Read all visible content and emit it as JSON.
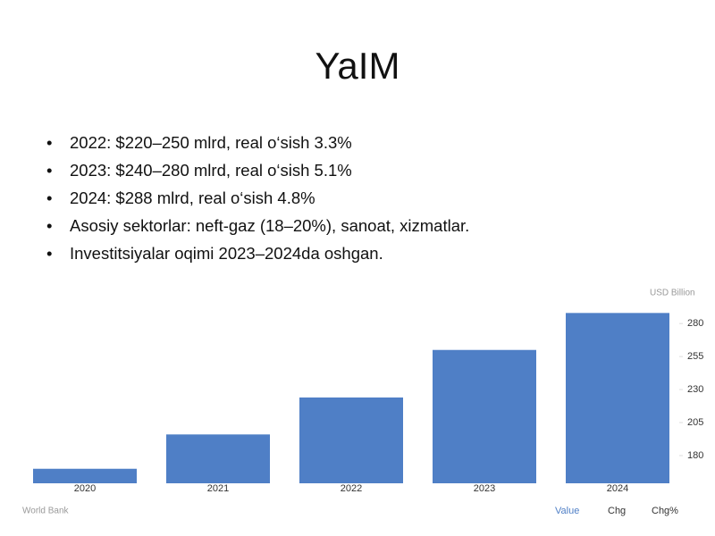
{
  "title": "YaIM",
  "bullets": [
    "2022: $220–250 mlrd, real o‘sish 3.3%",
    "2023: $240–280 mlrd, real o‘sish 5.1%",
    "2024: $288 mlrd, real o‘sish 4.8%",
    "Asosiy sektorlar: neft-gaz (18–20%), sanoat, xizmatlar.",
    "Investitsiyalar oqimi 2023–2024da oshgan."
  ],
  "chart_data": {
    "type": "bar",
    "y_label": "USD Billion",
    "source": "World Bank",
    "tabs": [
      "Value",
      "Chg",
      "Chg%"
    ],
    "categories": [
      "2020",
      "2021",
      "2022",
      "2023",
      "2024"
    ],
    "values": [
      170,
      196,
      224,
      260,
      288
    ],
    "color": "#4f7fc6",
    "ylim": [
      159,
      295
    ],
    "yticks": [
      180,
      205,
      230,
      255,
      280
    ],
    "grid": false
  }
}
